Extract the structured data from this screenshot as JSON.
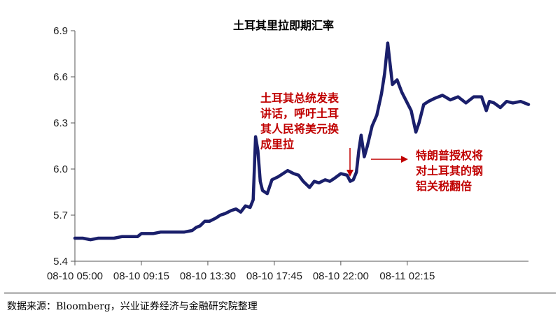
{
  "chart_data": {
    "type": "line",
    "title": "土耳其里拉即期汇率",
    "xlabel": "",
    "ylabel": "",
    "ylim": [
      5.4,
      6.9
    ],
    "yticks": [
      "5.4",
      "5.7",
      "6.0",
      "6.3",
      "6.6",
      "6.9"
    ],
    "xticks": [
      "08-10 05:00",
      "08-10 09:15",
      "08-10 13:30",
      "08-10 17:45",
      "08-10 22:00",
      "08-11 02:15"
    ],
    "x_range_hours": [
      0,
      29
    ],
    "grid": false,
    "legend": "none",
    "color": "#1a1f6b",
    "series": [
      {
        "x": [
          0,
          0.5,
          1,
          1.5,
          2,
          2.5,
          3,
          3.5,
          4,
          4.25,
          4.5,
          5,
          5.5,
          6,
          6.5,
          7,
          7.5,
          7.75,
          8,
          8.3,
          8.6,
          9,
          9.3,
          9.6,
          10,
          10.3,
          10.6,
          10.9,
          11.2,
          11.4,
          11.55,
          11.7,
          11.85,
          12,
          12.3,
          12.6,
          13,
          13.3,
          13.6,
          14,
          14.3,
          14.6,
          15,
          15.3,
          15.6,
          16,
          16.3,
          16.6,
          17,
          17.4,
          17.6,
          17.8,
          18,
          18.15,
          18.3,
          18.5,
          18.7,
          19,
          19.3,
          19.6,
          19.8,
          20,
          20.3,
          20.6,
          20.9,
          21.2,
          21.5,
          21.8,
          22,
          22.3,
          22.6,
          23,
          23.5,
          24,
          24.5,
          25,
          25.5,
          26,
          26.3,
          26.5,
          26.8,
          27.2,
          27.6,
          28,
          28.5,
          29
        ],
        "y": [
          5.55,
          5.55,
          5.54,
          5.55,
          5.55,
          5.55,
          5.56,
          5.56,
          5.56,
          5.58,
          5.58,
          5.58,
          5.59,
          5.59,
          5.59,
          5.59,
          5.6,
          5.62,
          5.63,
          5.66,
          5.66,
          5.68,
          5.7,
          5.71,
          5.73,
          5.74,
          5.72,
          5.76,
          5.75,
          5.8,
          6.21,
          6.12,
          5.92,
          5.86,
          5.84,
          5.93,
          5.95,
          5.97,
          5.99,
          5.97,
          5.96,
          5.92,
          5.88,
          5.92,
          5.91,
          5.93,
          5.92,
          5.94,
          5.97,
          5.96,
          5.92,
          5.93,
          5.98,
          6.12,
          6.22,
          6.08,
          6.15,
          6.28,
          6.35,
          6.49,
          6.62,
          6.82,
          6.55,
          6.58,
          6.5,
          6.44,
          6.38,
          6.24,
          6.3,
          6.42,
          6.44,
          6.46,
          6.48,
          6.45,
          6.47,
          6.43,
          6.47,
          6.47,
          6.38,
          6.44,
          6.43,
          6.4,
          6.44,
          6.43,
          6.44,
          6.42
        ]
      }
    ],
    "annotations": [
      {
        "text_lines": [
          "土耳其总统发表",
          "讲话，呼吁土耳",
          "其人民将美元换",
          "成里拉"
        ],
        "color": "#c00000"
      },
      {
        "text_lines": [
          "特朗普授权将",
          "对土耳其的钢",
          "铝关税翻倍"
        ],
        "color": "#c00000"
      }
    ]
  },
  "source_text": "数据来源：Bloomberg，兴业证券经济与金融研究院整理"
}
